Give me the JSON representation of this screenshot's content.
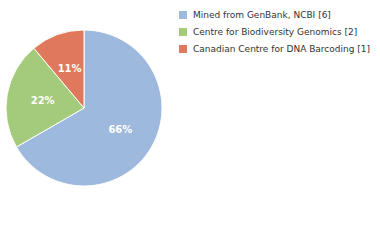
{
  "chart_data": {
    "type": "pie",
    "categories": [
      "Mined from GenBank, NCBI [6]",
      "Centre for Biodiversity Genomics [2]",
      "Canadian Centre for DNA Barcoding [1]"
    ],
    "values": [
      66,
      22,
      11
    ],
    "value_labels": [
      "66%",
      "22%",
      "11%"
    ],
    "colors": [
      "#9db9de",
      "#a4ca7c",
      "#e0795b"
    ],
    "data_labels": true,
    "legend": "top-right"
  }
}
